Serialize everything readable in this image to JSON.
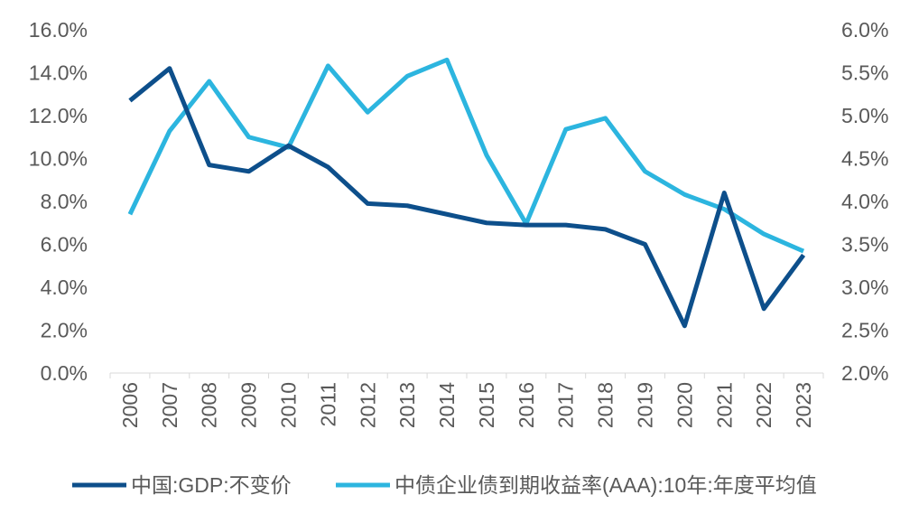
{
  "chart_data": {
    "type": "line",
    "categories": [
      "2006",
      "2007",
      "2008",
      "2009",
      "2010",
      "2011",
      "2012",
      "2013",
      "2014",
      "2015",
      "2016",
      "2017",
      "2018",
      "2019",
      "2020",
      "2021",
      "2022",
      "2023"
    ],
    "left_axis": {
      "ylim": [
        0,
        16
      ],
      "ticks": [
        "0.0%",
        "2.0%",
        "4.0%",
        "6.0%",
        "8.0%",
        "10.0%",
        "12.0%",
        "14.0%",
        "16.0%"
      ]
    },
    "right_axis": {
      "ylim": [
        2.0,
        6.0
      ],
      "ticks": [
        "2.0%",
        "2.5%",
        "3.0%",
        "3.5%",
        "4.0%",
        "4.5%",
        "5.0%",
        "5.5%",
        "6.0%"
      ]
    },
    "grid": false,
    "legend_position": "bottom",
    "series": [
      {
        "name": "中国:GDP:不变价",
        "axis": "left",
        "color": "#0d4f8b",
        "values": [
          12.7,
          14.2,
          9.7,
          9.4,
          10.6,
          9.6,
          7.9,
          7.8,
          7.4,
          7.0,
          6.9,
          6.9,
          6.7,
          6.0,
          2.2,
          8.4,
          3.0,
          5.5
        ]
      },
      {
        "name": "中债企业债到期收益率(AAA):10年:年度平均值",
        "axis": "right",
        "color": "#2cb5df",
        "values": [
          3.85,
          4.82,
          5.4,
          4.75,
          4.63,
          5.58,
          5.04,
          5.46,
          5.65,
          4.54,
          3.74,
          4.84,
          4.97,
          4.35,
          4.08,
          3.91,
          3.62,
          3.42
        ]
      }
    ]
  }
}
